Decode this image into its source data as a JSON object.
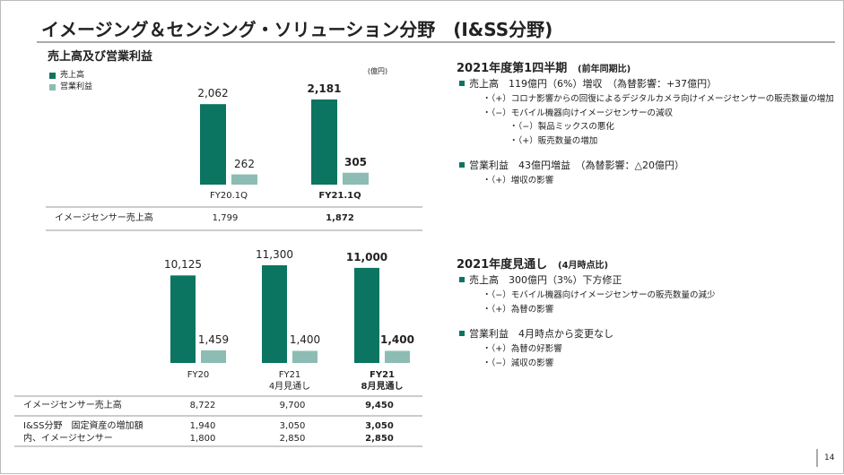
{
  "title": "イメージング＆センシング・ソリューション分野　(I&SS分野)",
  "page_number": "14",
  "chart_data": [
    {
      "type": "bar",
      "title": "売上高及び営業利益",
      "unit": "(億円)",
      "categories": [
        "FY20.1Q",
        "FY21.1Q"
      ],
      "series": [
        {
          "name": "売上高",
          "color": "#0b7561",
          "values": [
            2062,
            2181
          ],
          "value_labels": [
            "2,062",
            "2,181"
          ]
        },
        {
          "name": "営業利益",
          "color": "#8cbcb3",
          "values": [
            262,
            305
          ]
        }
      ],
      "table": [
        [
          "イメージセンサー売上高",
          "1,799",
          "1,872"
        ]
      ]
    },
    {
      "type": "bar",
      "categories": [
        "FY20",
        "FY21\n4月見通し",
        "FY21\n8月見通し"
      ],
      "series": [
        {
          "color": "#0b7561",
          "values": [
            10125,
            11300,
            11000
          ],
          "value_labels": [
            "10,125",
            "11,300",
            "11,000"
          ]
        },
        {
          "color": "#8cbcb3",
          "values": [
            1459,
            1400,
            1400
          ],
          "value_labels": [
            "1,459",
            "1,400",
            "1,400"
          ]
        }
      ],
      "table": [
        [
          "イメージセンサー売上高",
          "8,722",
          "9,700",
          "9,450"
        ],
        [
          "I&SS分野　固定資産の増加額",
          "1,940",
          "3,050",
          "3,050"
        ],
        [
          "内、イメージセンサー",
          "1,800",
          "2,850",
          "2,850"
        ]
      ]
    }
  ],
  "sections": [
    {
      "heading": "2021年度第1四半期",
      "note": "(前年同期比)",
      "items": [
        {
          "text": "売上高　119億円（6%）増収　（為替影響：+37億円）",
          "subs": [
            {
              "text": "・（+）コロナ影響からの回復によるデジタルカメラ向けイメージセンサーの販売数量の増加",
              "subs": []
            },
            {
              "text": "・（−）モバイル機器向けイメージセンサーの減収",
              "subs": [
                {
                  "text": "・（−）製品ミックスの悪化",
                  "subs": []
                },
                {
                  "text": "・（+）販売数量の増加",
                  "subs": []
                }
              ]
            }
          ]
        },
        {
          "text": "営業利益　43億円増益　（為替影響：△20億円）",
          "subs": [
            {
              "text": "・（+）増収の影響",
              "subs": []
            }
          ]
        }
      ]
    },
    {
      "heading": "2021年度見通し",
      "note": "(4月時点比)",
      "items": [
        {
          "text": "売上高　300億円（3%）下方修正",
          "subs": [
            {
              "text": "・（−）モバイル機器向けイメージセンサーの販売数量の減少",
              "subs": []
            },
            {
              "text": "・（+）為替の影響",
              "subs": []
            }
          ]
        },
        {
          "text": "営業利益　4月時点から変更なし",
          "subs": [
            {
              "text": "・（+）為替の好影響",
              "subs": []
            },
            {
              "text": "・（−）減収の影響",
              "subs": []
            }
          ]
        }
      ]
    }
  ]
}
